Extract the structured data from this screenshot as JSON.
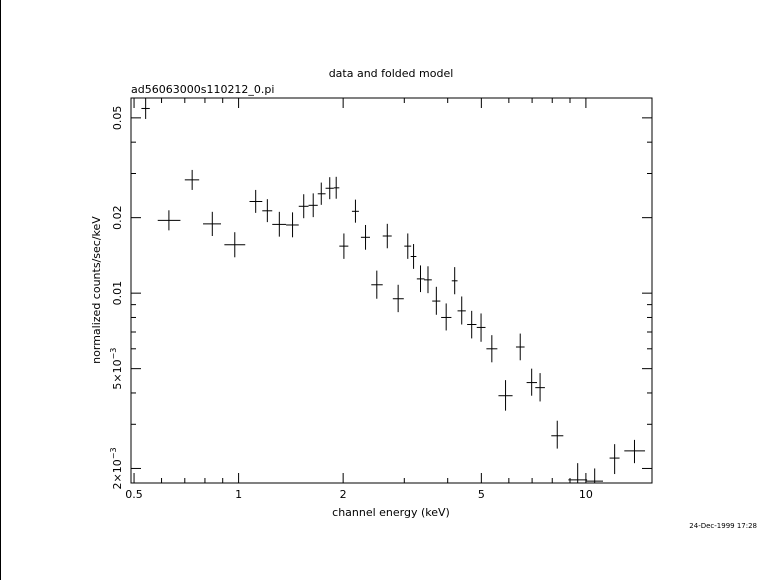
{
  "chart_data": {
    "type": "scatter",
    "title": "data and folded model",
    "subtitle": "ad56063000s110212_0.pi",
    "xlabel": "channel energy (keV)",
    "ylabel": "normalized counts/sec/keV",
    "footer_timestamp": "24-Dec-1999 17:28",
    "x_scale": "log",
    "y_scale": "log",
    "xlim": [
      0.49,
      15.5
    ],
    "ylim": [
      0.00175,
      0.06
    ],
    "x_major_ticks": [
      {
        "value": 0.5,
        "label": "0.5"
      },
      {
        "value": 1,
        "label": "1"
      },
      {
        "value": 2,
        "label": "2"
      },
      {
        "value": 5,
        "label": "5"
      },
      {
        "value": 10,
        "label": "10"
      }
    ],
    "x_minor_ticks": [
      0.6,
      0.7,
      0.8,
      0.9,
      3,
      4,
      6,
      7,
      8,
      9
    ],
    "y_major_ticks": [
      {
        "value": 0.05,
        "label": "0.05",
        "kind": "plain"
      },
      {
        "value": 0.02,
        "label": "0.02",
        "kind": "plain"
      },
      {
        "value": 0.01,
        "label": "0.01",
        "kind": "plain"
      },
      {
        "value": 0.005,
        "mantissa": "5",
        "times": "×",
        "base": "10",
        "exponent": "−3",
        "kind": "sci"
      },
      {
        "value": 0.002,
        "mantissa": "2",
        "times": "×",
        "base": "10",
        "exponent": "−3",
        "kind": "sci"
      }
    ],
    "y_minor_ticks": [
      0.003,
      0.004,
      0.006,
      0.007,
      0.008,
      0.009,
      0.03,
      0.04
    ],
    "grid": false,
    "legend": "none",
    "series": [
      {
        "points": [
          {
            "x": 0.54,
            "xlo": 0.525,
            "xhi": 0.555,
            "y": 0.0545,
            "ylo": 0.0495,
            "yhi": 0.0598
          },
          {
            "x": 0.63,
            "xlo": 0.585,
            "xhi": 0.68,
            "y": 0.0195,
            "ylo": 0.0178,
            "yhi": 0.0214
          },
          {
            "x": 0.735,
            "xlo": 0.7,
            "xhi": 0.77,
            "y": 0.0283,
            "ylo": 0.0258,
            "yhi": 0.031
          },
          {
            "x": 0.84,
            "xlo": 0.79,
            "xhi": 0.89,
            "y": 0.0189,
            "ylo": 0.0169,
            "yhi": 0.0211
          },
          {
            "x": 0.975,
            "xlo": 0.91,
            "xhi": 1.045,
            "y": 0.0156,
            "ylo": 0.0139,
            "yhi": 0.0175
          },
          {
            "x": 1.12,
            "xlo": 1.075,
            "xhi": 1.17,
            "y": 0.0232,
            "ylo": 0.0209,
            "yhi": 0.0258
          },
          {
            "x": 1.21,
            "xlo": 1.17,
            "xhi": 1.25,
            "y": 0.0213,
            "ylo": 0.0192,
            "yhi": 0.0237
          },
          {
            "x": 1.31,
            "xlo": 1.25,
            "xhi": 1.37,
            "y": 0.0188,
            "ylo": 0.0168,
            "yhi": 0.0211
          },
          {
            "x": 1.43,
            "xlo": 1.37,
            "xhi": 1.49,
            "y": 0.0187,
            "ylo": 0.0167,
            "yhi": 0.021
          },
          {
            "x": 1.54,
            "xlo": 1.49,
            "xhi": 1.59,
            "y": 0.0222,
            "ylo": 0.0199,
            "yhi": 0.0248
          },
          {
            "x": 1.64,
            "xlo": 1.59,
            "xhi": 1.69,
            "y": 0.0224,
            "ylo": 0.0201,
            "yhi": 0.025
          },
          {
            "x": 1.73,
            "xlo": 1.69,
            "xhi": 1.78,
            "y": 0.0249,
            "ylo": 0.0225,
            "yhi": 0.0276
          },
          {
            "x": 1.83,
            "xlo": 1.78,
            "xhi": 1.88,
            "y": 0.0262,
            "ylo": 0.0237,
            "yhi": 0.029
          },
          {
            "x": 1.91,
            "xlo": 1.88,
            "xhi": 1.95,
            "y": 0.0263,
            "ylo": 0.0238,
            "yhi": 0.0291
          },
          {
            "x": 2.01,
            "xlo": 1.95,
            "xhi": 2.07,
            "y": 0.0154,
            "ylo": 0.0137,
            "yhi": 0.0173
          },
          {
            "x": 2.17,
            "xlo": 2.12,
            "xhi": 2.22,
            "y": 0.0212,
            "ylo": 0.0191,
            "yhi": 0.0236
          },
          {
            "x": 2.32,
            "xlo": 2.25,
            "xhi": 2.39,
            "y": 0.0167,
            "ylo": 0.0149,
            "yhi": 0.0187
          },
          {
            "x": 2.5,
            "xlo": 2.41,
            "xhi": 2.6,
            "y": 0.0108,
            "ylo": 0.0095,
            "yhi": 0.0123
          },
          {
            "x": 2.68,
            "xlo": 2.6,
            "xhi": 2.76,
            "y": 0.0169,
            "ylo": 0.0151,
            "yhi": 0.0189
          },
          {
            "x": 2.88,
            "xlo": 2.78,
            "xhi": 2.99,
            "y": 0.0095,
            "ylo": 0.0084,
            "yhi": 0.0108
          },
          {
            "x": 3.07,
            "xlo": 3.0,
            "xhi": 3.14,
            "y": 0.0154,
            "ylo": 0.0137,
            "yhi": 0.0173
          },
          {
            "x": 3.19,
            "xlo": 3.13,
            "xhi": 3.25,
            "y": 0.014,
            "ylo": 0.0125,
            "yhi": 0.0157
          },
          {
            "x": 3.34,
            "xlo": 3.26,
            "xhi": 3.43,
            "y": 0.0114,
            "ylo": 0.0101,
            "yhi": 0.0129
          },
          {
            "x": 3.51,
            "xlo": 3.42,
            "xhi": 3.6,
            "y": 0.0113,
            "ylo": 0.01,
            "yhi": 0.0128
          },
          {
            "x": 3.71,
            "xlo": 3.61,
            "xhi": 3.81,
            "y": 0.0093,
            "ylo": 0.0082,
            "yhi": 0.0106
          },
          {
            "x": 3.96,
            "xlo": 3.83,
            "xhi": 4.1,
            "y": 0.008,
            "ylo": 0.0071,
            "yhi": 0.0091
          },
          {
            "x": 4.19,
            "xlo": 4.11,
            "xhi": 4.27,
            "y": 0.0112,
            "ylo": 0.0099,
            "yhi": 0.0127
          },
          {
            "x": 4.39,
            "xlo": 4.27,
            "xhi": 4.51,
            "y": 0.0085,
            "ylo": 0.0075,
            "yhi": 0.0097
          },
          {
            "x": 4.69,
            "xlo": 4.55,
            "xhi": 4.84,
            "y": 0.0075,
            "ylo": 0.0066,
            "yhi": 0.0085
          },
          {
            "x": 4.99,
            "xlo": 4.85,
            "xhi": 5.14,
            "y": 0.0073,
            "ylo": 0.0064,
            "yhi": 0.0083
          },
          {
            "x": 5.36,
            "xlo": 5.17,
            "xhi": 5.56,
            "y": 0.006,
            "ylo": 0.0053,
            "yhi": 0.0068
          },
          {
            "x": 5.87,
            "xlo": 5.6,
            "xhi": 6.15,
            "y": 0.0039,
            "ylo": 0.0034,
            "yhi": 0.0045
          },
          {
            "x": 6.47,
            "xlo": 6.29,
            "xhi": 6.66,
            "y": 0.0061,
            "ylo": 0.0054,
            "yhi": 0.0069
          },
          {
            "x": 6.98,
            "xlo": 6.75,
            "xhi": 7.23,
            "y": 0.0044,
            "ylo": 0.0039,
            "yhi": 0.005
          },
          {
            "x": 7.38,
            "xlo": 7.15,
            "xhi": 7.62,
            "y": 0.0042,
            "ylo": 0.0037,
            "yhi": 0.0048
          },
          {
            "x": 8.27,
            "xlo": 7.95,
            "xhi": 8.61,
            "y": 0.0027,
            "ylo": 0.0024,
            "yhi": 0.0031
          },
          {
            "x": 9.47,
            "xlo": 8.9,
            "xhi": 10.08,
            "y": 0.0018,
            "ylo": 0.00175,
            "yhi": 0.0021
          },
          {
            "x": 10.6,
            "xlo": 10.0,
            "xhi": 11.2,
            "y": 0.00178,
            "ylo": 0.00175,
            "yhi": 0.002
          },
          {
            "x": 12.1,
            "xlo": 11.7,
            "xhi": 12.5,
            "y": 0.0022,
            "ylo": 0.0019,
            "yhi": 0.0025
          },
          {
            "x": 13.8,
            "xlo": 12.9,
            "xhi": 14.8,
            "y": 0.00235,
            "ylo": 0.0021,
            "yhi": 0.0026
          }
        ]
      }
    ]
  }
}
